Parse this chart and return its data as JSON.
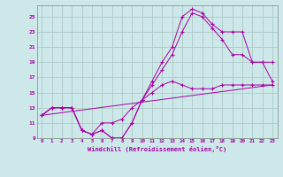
{
  "xlabel": "Windchill (Refroidissement éolien,°C)",
  "xlim": [
    -0.5,
    23.5
  ],
  "ylim": [
    9,
    26.5
  ],
  "yticks": [
    9,
    11,
    13,
    15,
    17,
    19,
    21,
    23,
    25
  ],
  "xticks": [
    0,
    1,
    2,
    3,
    4,
    5,
    6,
    7,
    8,
    9,
    10,
    11,
    12,
    13,
    14,
    15,
    16,
    17,
    18,
    19,
    20,
    21,
    22,
    23
  ],
  "background_color": "#cce8e8",
  "grid_color": "#b0c8c8",
  "line_color": "#aa00aa",
  "lines": [
    {
      "x": [
        0,
        1,
        2,
        3,
        4,
        5,
        6,
        7,
        8,
        9,
        10,
        11,
        12,
        13,
        14,
        15,
        16,
        17,
        18,
        19,
        20,
        21,
        22,
        23
      ],
      "y": [
        12,
        13,
        13,
        13,
        10,
        9.5,
        10,
        9,
        9,
        11,
        14,
        16.5,
        19,
        21,
        25,
        26,
        25.5,
        24,
        23,
        23,
        23,
        19,
        19,
        19
      ],
      "marker": "+"
    },
    {
      "x": [
        0,
        1,
        2,
        3,
        4,
        5,
        6,
        7,
        8,
        9,
        10,
        11,
        12,
        13,
        14,
        15,
        16,
        17,
        18,
        19,
        20,
        21,
        22,
        23
      ],
      "y": [
        12,
        13,
        13,
        13,
        10,
        9.5,
        10,
        9,
        9,
        11,
        14,
        16,
        18,
        20,
        23,
        25.5,
        25,
        23.5,
        22,
        20,
        20,
        19,
        19,
        16.5
      ],
      "marker": "+"
    },
    {
      "x": [
        0,
        1,
        2,
        3,
        4,
        5,
        6,
        7,
        8,
        9,
        10,
        11,
        12,
        13,
        14,
        15,
        16,
        17,
        18,
        19,
        20,
        21,
        22,
        23
      ],
      "y": [
        12,
        13,
        13,
        13,
        10,
        9.5,
        11,
        11,
        11.5,
        13,
        14,
        15,
        16,
        16.5,
        16,
        15.5,
        15.5,
        15.5,
        16,
        16,
        16,
        16,
        16,
        16
      ],
      "marker": "+"
    },
    {
      "x": [
        0,
        23
      ],
      "y": [
        12,
        16
      ],
      "marker": null
    }
  ]
}
